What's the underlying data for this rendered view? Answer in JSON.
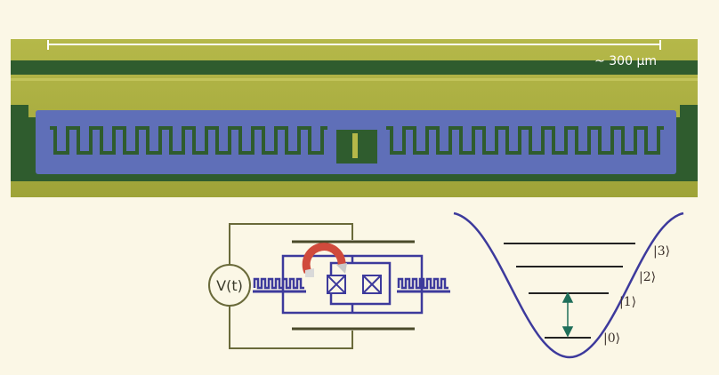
{
  "micrograph": {
    "scale_bar_label": "~ 300 µm"
  },
  "circuit": {
    "source_label": "V(t)"
  },
  "energy_diagram": {
    "levels": [
      {
        "label": "|0⟩",
        "index": 0
      },
      {
        "label": "|1⟩",
        "index": 1
      },
      {
        "label": "|2⟩",
        "index": 2
      },
      {
        "label": "|3⟩",
        "index": 3
      }
    ]
  },
  "colors": {
    "background": "#fbf7e6",
    "gold_film": "#a8ad3c",
    "dark_ground": "#2f5c2e",
    "capacitor_blue": "#5f6fb8",
    "circuit_purple": "#3d3a9c",
    "wire_olive": "#6a6a3a",
    "magnet_red": "#d04a3c",
    "arrow_teal": "#1f6f5a"
  }
}
